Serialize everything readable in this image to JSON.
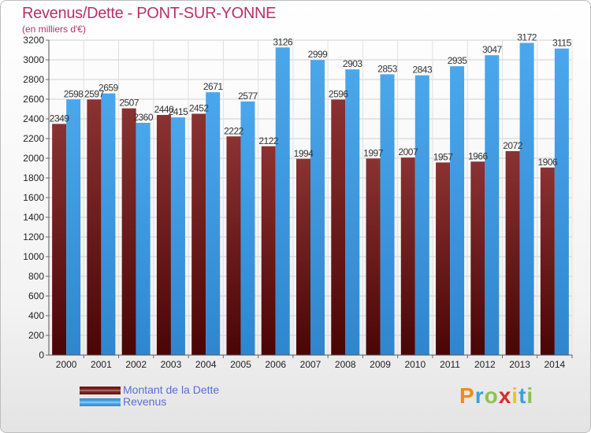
{
  "title": "Revenus/Dette - PONT-SUR-YONNE",
  "subtitle": "(en milliers d'€)",
  "legend": [
    {
      "label": "Montant de la Dette",
      "color": "#7a1c1c"
    },
    {
      "label": "Revenus",
      "color": "#3f9ae2"
    }
  ],
  "logo": {
    "text": "Proxiti",
    "letters": [
      "P",
      "r",
      "o",
      "x",
      "i",
      "t",
      "i"
    ],
    "colors": [
      "#f08a1c",
      "#3aa0dd",
      "#8bc34a",
      "#d82a2a",
      "#f0c419",
      "#3aa0dd",
      "#8bc34a"
    ]
  },
  "chart_data": {
    "type": "bar",
    "categories": [
      "2000",
      "2001",
      "2002",
      "2003",
      "2004",
      "2005",
      "2006",
      "2007",
      "2008",
      "2009",
      "2010",
      "2011",
      "2012",
      "2013",
      "2014"
    ],
    "series": [
      {
        "name": "Montant de la Dette",
        "values": [
          2349,
          2597,
          2507,
          2440,
          2452,
          2222,
          2122,
          1994,
          2596,
          1997,
          2007,
          1957,
          1966,
          2072,
          1906
        ],
        "labels": [
          "2349",
          "2597",
          "2507",
          "2440",
          "2452",
          "2222",
          "2122",
          "1994",
          "2596",
          "1997",
          "2007",
          "1957",
          "1966",
          "2072",
          "1906"
        ]
      },
      {
        "name": "Revenus",
        "values": [
          2598,
          2659,
          2360,
          2415,
          2671,
          2577,
          3126,
          2999,
          2903,
          2853,
          2843,
          2935,
          3047,
          3172,
          3115
        ],
        "labels": [
          "2598",
          "2659",
          "2360",
          "2415",
          "2671",
          "2577",
          "3126",
          "2999",
          "2903",
          "2853",
          "2843",
          "2935",
          "3047",
          "3172",
          "3115"
        ]
      }
    ],
    "ylim": [
      0,
      3200
    ],
    "yticks": [
      0,
      200,
      400,
      600,
      800,
      1000,
      1200,
      1400,
      1600,
      1800,
      2000,
      2200,
      2400,
      2600,
      2800,
      3000,
      3200
    ],
    "grid": true,
    "legend_position": "bottom-left",
    "title": "Revenus/Dette - PONT-SUR-YONNE",
    "ylabel": "(en milliers d'€)",
    "xlabel": ""
  }
}
